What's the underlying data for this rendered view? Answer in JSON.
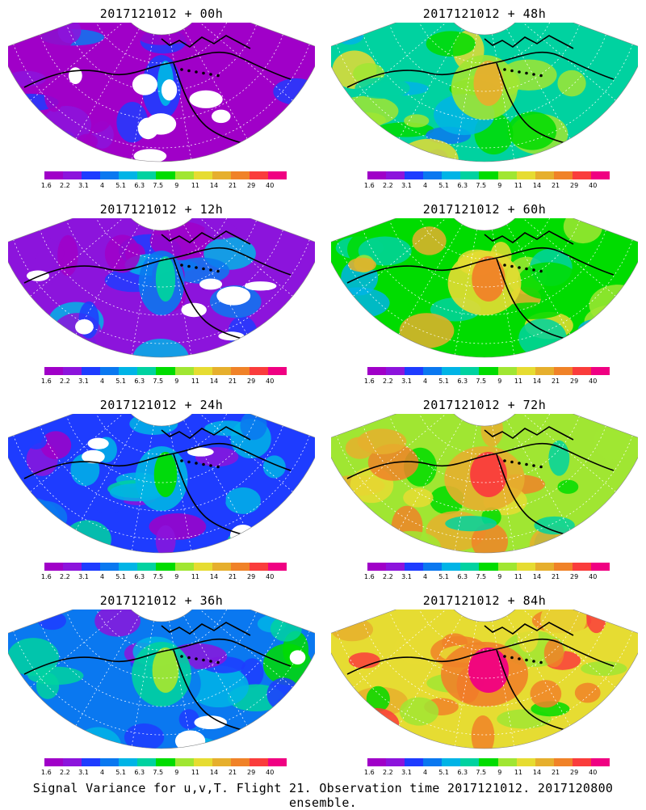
{
  "panels": [
    {
      "title": "2017121012 + 00h",
      "lead": 0
    },
    {
      "title": "2017121012 + 48h",
      "lead": 48
    },
    {
      "title": "2017121012 + 12h",
      "lead": 12
    },
    {
      "title": "2017121012 + 60h",
      "lead": 60
    },
    {
      "title": "2017121012 + 24h",
      "lead": 24
    },
    {
      "title": "2017121012 + 72h",
      "lead": 72
    },
    {
      "title": "2017121012 + 36h",
      "lead": 36
    },
    {
      "title": "2017121012 + 84h",
      "lead": 84
    }
  ],
  "colorbar": {
    "labels": [
      "1.6",
      "2.2",
      "3.1",
      "4",
      "5.1",
      "6.3",
      "7.5",
      "9",
      "11",
      "14",
      "21",
      "29",
      "40"
    ],
    "colors": [
      "#a000c8",
      "#8c14dc",
      "#1e3cff",
      "#0a78f0",
      "#00b4e6",
      "#00d2a0",
      "#00dc00",
      "#a0e632",
      "#e6dc32",
      "#e6af2d",
      "#f08228",
      "#fa3c3c",
      "#f00082"
    ]
  },
  "map": {
    "projection": "polar-stereographic-sector",
    "region": "North Pacific / Arctic",
    "background_color": "#ffffff",
    "coastline_color": "#000000"
  },
  "footer": {
    "caption": "Signal Variance for u,v,T. Flight 21. Observation time 2017121012. 2017120800 ensemble."
  }
}
